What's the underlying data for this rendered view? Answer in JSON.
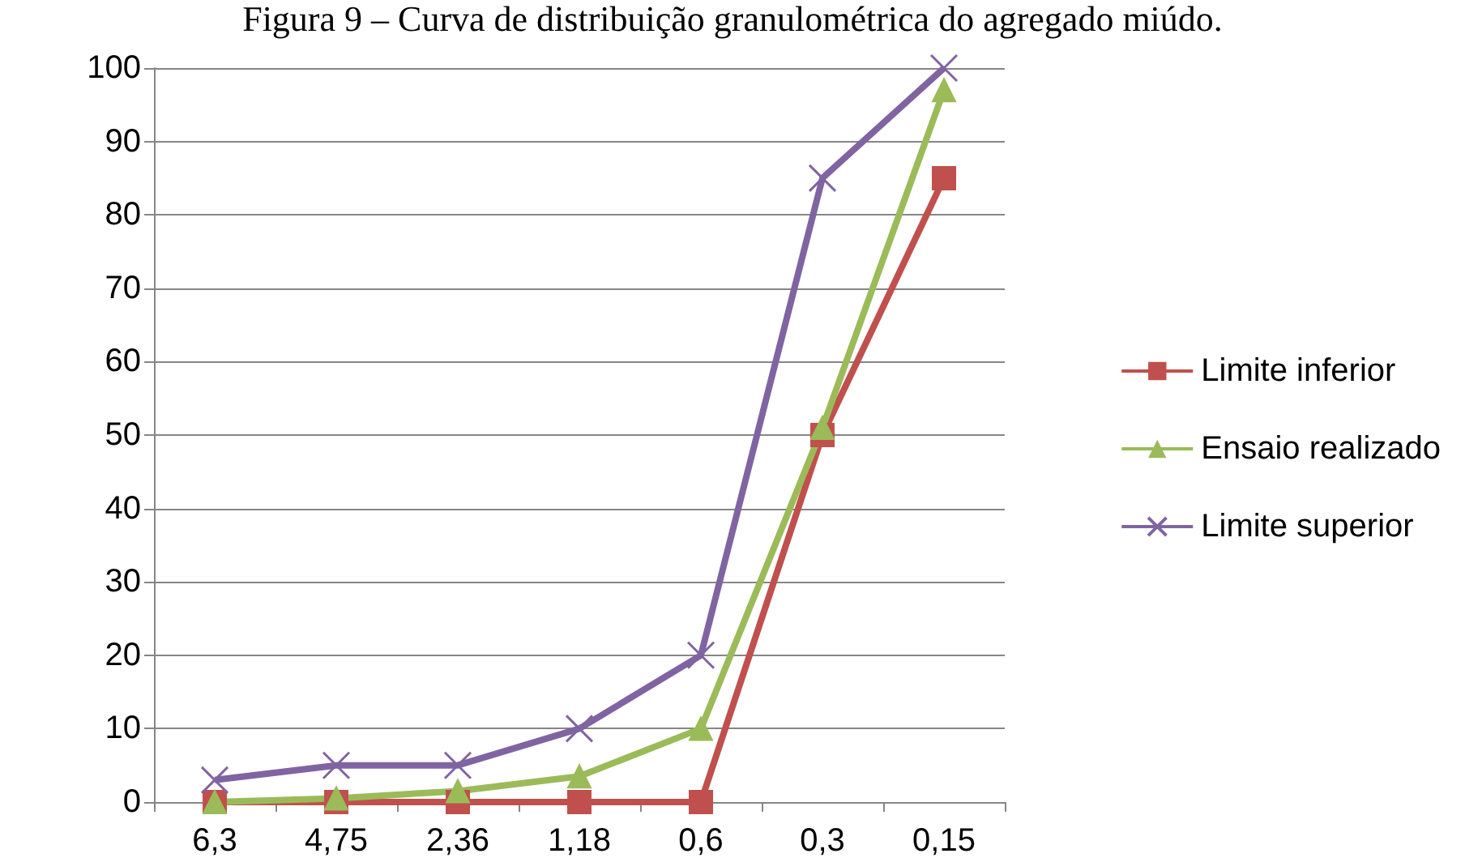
{
  "chart_data": {
    "type": "line",
    "title": "Figura 9 – Curva de distribuição granulométrica do agregado miúdo.",
    "categories": [
      "6,3",
      "4,75",
      "2,36",
      "1,18",
      "0,6",
      "0,3",
      "0,15"
    ],
    "series": [
      {
        "name": "Limite inferior",
        "color": "#c0504d",
        "marker": "square",
        "values": [
          0,
          0,
          0,
          0,
          0,
          50,
          85
        ]
      },
      {
        "name": "Ensaio realizado",
        "color": "#9bbb59",
        "marker": "triangle",
        "values": [
          0,
          0.5,
          1.5,
          3.5,
          10,
          51,
          97
        ]
      },
      {
        "name": "Limite superior",
        "color": "#8064a2",
        "marker": "cross",
        "values": [
          3,
          5,
          5,
          10,
          20,
          85,
          100
        ]
      }
    ],
    "ylim": [
      0,
      100
    ],
    "yticks": [
      0,
      10,
      20,
      30,
      40,
      50,
      60,
      70,
      80,
      90,
      100
    ],
    "grid": "y",
    "legend": "right"
  }
}
